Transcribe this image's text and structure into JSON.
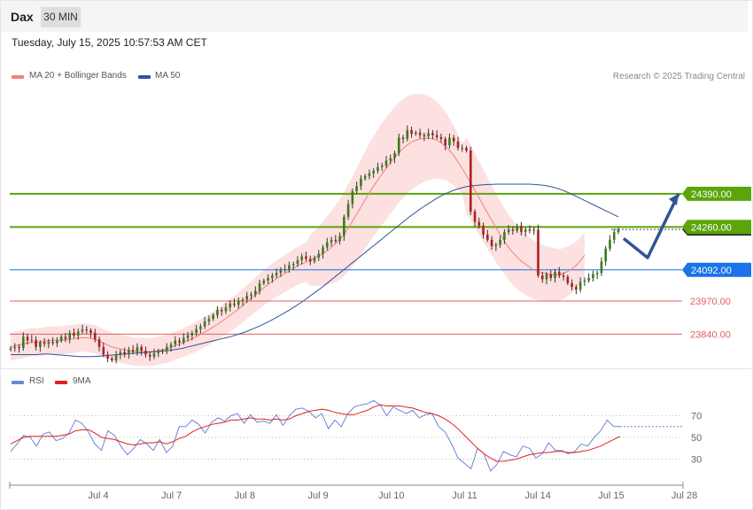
{
  "header": {
    "title": "Dax",
    "timeframe": "30 MIN"
  },
  "datetime": "Tuesday, July 15, 2025 10:57:53 AM CET",
  "legend": {
    "ma20": "MA 20 + Bollinger Bands",
    "ma50": "MA 50",
    "rsi": "RSI",
    "ma9": "9MA",
    "copyright": "Research © 2025 Trading Central"
  },
  "colors": {
    "ma20": "#f08080",
    "ma50": "#2f5597",
    "green_level": "#5aa50a",
    "blue_level": "#1a73e8",
    "red_level": "#e06060",
    "bull": "#3a7d1c",
    "bear": "#b02020",
    "rsi": "#6b86d6",
    "ma9": "#e02020",
    "arrow": "#2f5597"
  },
  "chart_data": [
    {
      "type": "candlestick",
      "x_tick_labels": [
        "Jul 4",
        "Jul 7",
        "Jul 8",
        "Jul 9",
        "Jul 10",
        "Jul 11",
        "Jul 14",
        "Jul 15",
        "Jul 28"
      ],
      "ylim": [
        23720,
        24820
      ],
      "current_price": "24250.37",
      "levels": [
        {
          "value": 24390.0,
          "label": "24390.00",
          "style": "resistance-green"
        },
        {
          "value": 24260.0,
          "label": "24260.00",
          "style": "resistance-green"
        },
        {
          "value": 24092.0,
          "label": "24092.00",
          "style": "pivot-blue"
        },
        {
          "value": 23970.0,
          "label": "23970.00",
          "style": "support-red"
        },
        {
          "value": 23840.0,
          "label": "23840.00",
          "style": "support-red"
        }
      ],
      "forecast_path": [
        24215,
        24140,
        24390
      ],
      "close": [
        23785,
        23790,
        23786,
        23830,
        23815,
        23818,
        23790,
        23808,
        23802,
        23810,
        23805,
        23815,
        23830,
        23822,
        23845,
        23835,
        23850,
        23858,
        23855,
        23845,
        23820,
        23790,
        23760,
        23745,
        23738,
        23760,
        23770,
        23760,
        23778,
        23770,
        23790,
        23775,
        23760,
        23752,
        23765,
        23770,
        23775,
        23790,
        23800,
        23815,
        23808,
        23825,
        23835,
        23845,
        23860,
        23870,
        23890,
        23900,
        23915,
        23935,
        23930,
        23945,
        23960,
        23955,
        23970,
        23975,
        23990,
        23995,
        24010,
        24040,
        24050,
        24060,
        24070,
        24080,
        24090,
        24095,
        24110,
        24115,
        24130,
        24145,
        24135,
        24125,
        24140,
        24155,
        24180,
        24200,
        24210,
        24205,
        24225,
        24300,
        24350,
        24400,
        24420,
        24450,
        24460,
        24470,
        24480,
        24495,
        24500,
        24520,
        24530,
        24550,
        24610,
        24605,
        24640,
        24625,
        24630,
        24620,
        24615,
        24628,
        24620,
        24612,
        24605,
        24580,
        24610,
        24595,
        24570,
        24570,
        24560,
        24320,
        24280,
        24265,
        24230,
        24210,
        24185,
        24190,
        24210,
        24240,
        24250,
        24245,
        24265,
        24240,
        24250,
        24245,
        24250,
        24070,
        24055,
        24075,
        24060,
        24085,
        24070,
        24065,
        24040,
        24025,
        24015,
        24045,
        24050,
        24060,
        24075,
        24080,
        24125,
        24175,
        24210,
        24240,
        24250
      ],
      "ma20": [
        23790,
        23795,
        23798,
        23802,
        23805,
        23808,
        23808,
        23810,
        23812,
        23815,
        23816,
        23816,
        23815,
        23818,
        23820,
        23822,
        23825,
        23826,
        23826,
        23823,
        23820,
        23812,
        23805,
        23798,
        23790,
        23786,
        23782,
        23779,
        23776,
        23773,
        23772,
        23772,
        23771,
        23771,
        23772,
        23775,
        23779,
        23783,
        23788,
        23795,
        23801,
        23808,
        23815,
        23822,
        23830,
        23839,
        23848,
        23858,
        23868,
        23878,
        23890,
        23902,
        23914,
        23926,
        23938,
        23952,
        23966,
        23980,
        23994,
        24008,
        24022,
        24035,
        24047,
        24058,
        24068,
        24078,
        24088,
        24098,
        24108,
        24116,
        24122,
        24130,
        24138,
        24146,
        24156,
        24166,
        24180,
        24195,
        24212,
        24232,
        24256,
        24282,
        24310,
        24338,
        24366,
        24394,
        24420,
        24445,
        24468,
        24490,
        24512,
        24532,
        24552,
        24568,
        24582,
        24593,
        24600,
        24605,
        24608,
        24608,
        24606,
        24600,
        24590,
        24578,
        24560,
        24540,
        24515,
        24490,
        24462,
        24434,
        24404,
        24374,
        24344,
        24314,
        24286,
        24258,
        24230,
        24205,
        24180,
        24160,
        24142,
        24126,
        24114,
        24102,
        24092,
        24086,
        24080,
        24077,
        24074,
        24072,
        24072,
        24078,
        24086,
        24096,
        24110,
        24128,
        24150
      ],
      "ma50": [
        23760,
        23760,
        23760,
        23760,
        23760,
        23762,
        23762,
        23760,
        23758,
        23756,
        23754,
        23752,
        23752,
        23752,
        23754,
        23756,
        23758,
        23760,
        23762,
        23764,
        23766,
        23768,
        23770,
        23772,
        23774,
        23776,
        23780,
        23784,
        23790,
        23796,
        23802,
        23808,
        23814,
        23820,
        23826,
        23832,
        23840,
        23848,
        23858,
        23868,
        23880,
        23892,
        23906,
        23920,
        23934,
        23950,
        23966,
        23984,
        24002,
        24020,
        24040,
        24060,
        24080,
        24100,
        24120,
        24140,
        24160,
        24180,
        24200,
        24220,
        24240,
        24260,
        24280,
        24300,
        24318,
        24336,
        24352,
        24368,
        24382,
        24394,
        24404,
        24412,
        24418,
        24422,
        24424,
        24426,
        24427,
        24428,
        24428,
        24428,
        24428,
        24428,
        24428,
        24426,
        24424,
        24420,
        24414,
        24406,
        24396,
        24384,
        24372,
        24360,
        24348,
        24336,
        24324,
        24312,
        24300
      ]
    },
    {
      "type": "line",
      "ylim": [
        10,
        90
      ],
      "y_tick_labels": [
        "70",
        "50",
        "30"
      ],
      "y_ticks": [
        70,
        50,
        30
      ],
      "series": [
        {
          "name": "RSI",
          "values": [
            37,
            44,
            52,
            50,
            42,
            53,
            55,
            47,
            49,
            54,
            66,
            63,
            55,
            44,
            38,
            56,
            52,
            42,
            34,
            40,
            48,
            44,
            38,
            48,
            36,
            42,
            60,
            60,
            66,
            62,
            54,
            64,
            68,
            65,
            70,
            72,
            63,
            71,
            64,
            65,
            63,
            71,
            61,
            70,
            76,
            77,
            74,
            68,
            72,
            58,
            66,
            60,
            72,
            78,
            80,
            81,
            84,
            80,
            70,
            78,
            75,
            72,
            75,
            68,
            71,
            72,
            60,
            55,
            44,
            31,
            26,
            21,
            40,
            35,
            19,
            25,
            37,
            34,
            32,
            42,
            40,
            31,
            35,
            45,
            38,
            38,
            35,
            37,
            44,
            42,
            50,
            56,
            66,
            60,
            60
          ]
        },
        {
          "name": "9MA",
          "values": [
            44,
            47,
            50,
            51,
            51,
            51,
            51,
            51,
            52,
            53,
            56,
            57,
            57,
            54,
            50,
            49,
            48,
            46,
            44,
            43,
            44,
            45,
            45,
            46,
            44,
            46,
            49,
            51,
            55,
            58,
            60,
            62,
            63,
            64,
            66,
            66,
            67,
            68,
            67,
            67,
            66,
            67,
            66,
            67,
            70,
            72,
            74,
            75,
            76,
            75,
            73,
            72,
            71,
            71,
            73,
            75,
            78,
            80,
            79,
            79,
            79,
            78,
            77,
            75,
            73,
            72,
            70,
            67,
            63,
            58,
            52,
            46,
            40,
            35,
            31,
            28,
            28,
            29,
            30,
            32,
            34,
            35,
            36,
            36,
            37,
            37,
            36,
            36,
            37,
            38,
            40,
            42,
            45,
            48,
            51
          ]
        }
      ]
    }
  ]
}
